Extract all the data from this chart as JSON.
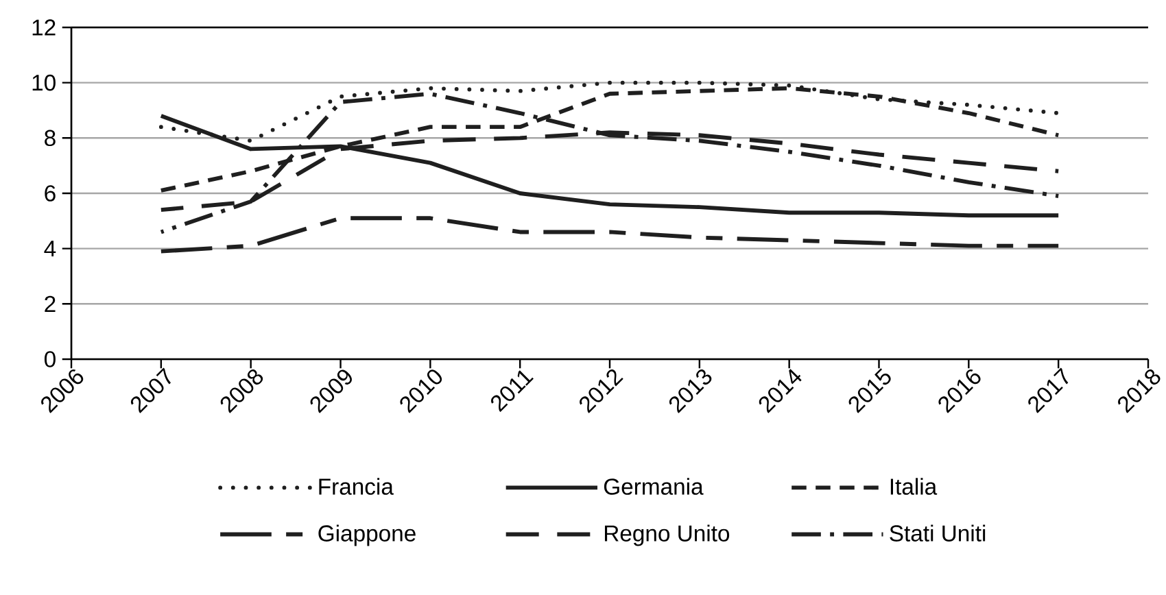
{
  "chart_data": {
    "type": "line",
    "x": [
      2007,
      2008,
      2009,
      2010,
      2011,
      2012,
      2013,
      2014,
      2015,
      2016,
      2017
    ],
    "xlim": [
      2006,
      2018
    ],
    "xticks": [
      2006,
      2007,
      2008,
      2009,
      2010,
      2011,
      2012,
      2013,
      2014,
      2015,
      2016,
      2017,
      2018
    ],
    "ylim": [
      0,
      12
    ],
    "yticks": [
      0,
      2,
      4,
      6,
      8,
      10,
      12
    ],
    "grid": "y",
    "legend": "bottom",
    "series": [
      {
        "name": "Francia",
        "color": "#1f1f1f",
        "line_style": "dotted",
        "values": [
          8.4,
          7.9,
          9.5,
          9.8,
          9.7,
          10.0,
          10.0,
          9.9,
          9.4,
          9.2,
          8.9
        ]
      },
      {
        "name": "Germania",
        "color": "#1f1f1f",
        "line_style": "solid",
        "values": [
          8.8,
          7.6,
          7.7,
          7.1,
          6.0,
          5.6,
          5.5,
          5.3,
          5.3,
          5.2,
          5.2
        ]
      },
      {
        "name": "Italia",
        "color": "#1f1f1f",
        "line_style": "dashed",
        "values": [
          6.1,
          6.8,
          7.7,
          8.4,
          8.4,
          9.6,
          9.7,
          9.8,
          9.5,
          8.9,
          8.1
        ]
      },
      {
        "name": "Giappone",
        "color": "#1f1f1f",
        "line_style": "long dash short dash",
        "values": [
          3.9,
          4.1,
          5.1,
          5.1,
          4.6,
          4.6,
          4.4,
          4.3,
          4.2,
          4.1,
          4.1
        ]
      },
      {
        "name": "Regno Unito",
        "color": "#1f1f1f",
        "line_style": "long dashed",
        "values": [
          5.4,
          5.7,
          7.6,
          7.9,
          8.0,
          8.2,
          8.1,
          7.8,
          7.4,
          7.1,
          6.8
        ]
      },
      {
        "name": "Stati Uniti",
        "color": "#1f1f1f",
        "line_style": "dash dot",
        "values": [
          4.6,
          5.7,
          9.3,
          9.6,
          8.9,
          8.1,
          7.9,
          7.5,
          7.0,
          6.4,
          5.9
        ]
      }
    ]
  }
}
